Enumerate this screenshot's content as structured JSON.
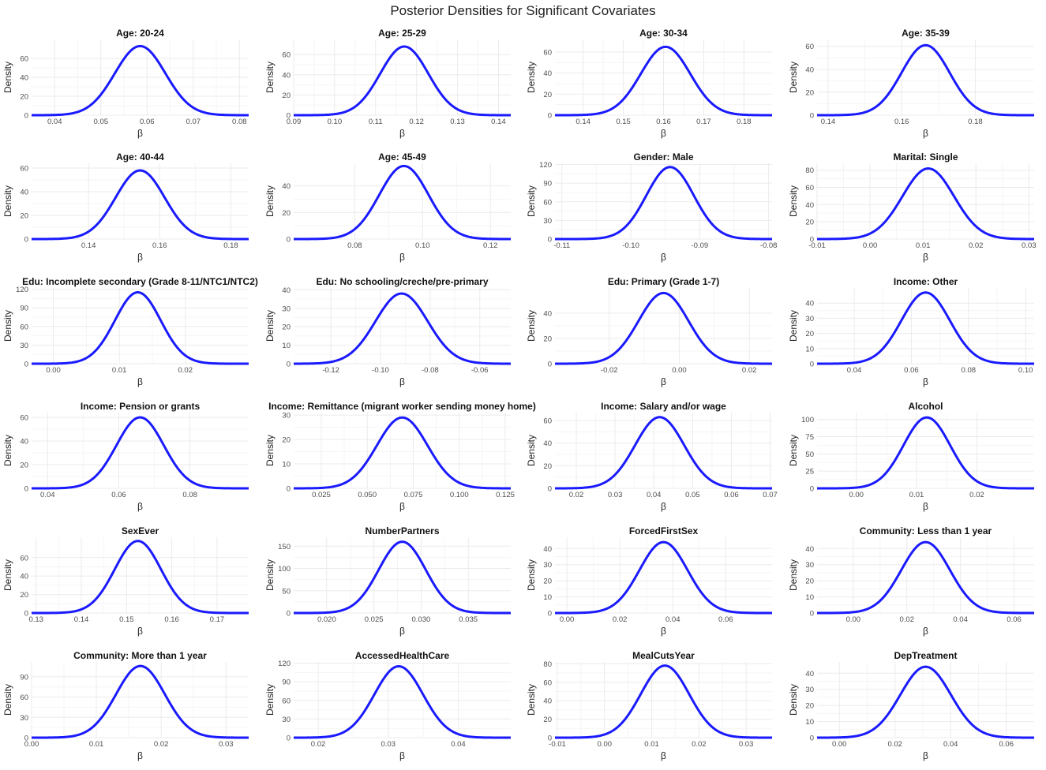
{
  "title": "Posterior Densities for Significant Covariates",
  "colors": {
    "curve": "#1a1aff",
    "grid_major": "#ebebeb",
    "grid_minor": "#f5f5f5"
  },
  "chart_data": [
    {
      "type": "line",
      "title": "Age: 20-24",
      "xlabel": "β",
      "ylabel": "Density",
      "mean": 0.0585,
      "peak": 73,
      "xlim": [
        0.035,
        0.082
      ],
      "ylim": [
        0,
        80
      ],
      "xticks": [
        0.04,
        0.05,
        0.06,
        0.07,
        0.08
      ],
      "xtick_labels": [
        "0.04",
        "0.05",
        "0.06",
        "0.07",
        "0.08"
      ],
      "yticks": [
        0,
        20,
        40,
        60
      ],
      "grid": true
    },
    {
      "type": "line",
      "title": "Age: 25-29",
      "xlabel": "β",
      "ylabel": "Density",
      "mean": 0.117,
      "peak": 68,
      "xlim": [
        0.09,
        0.143
      ],
      "ylim": [
        0,
        75
      ],
      "xticks": [
        0.09,
        0.1,
        0.11,
        0.12,
        0.13,
        0.14
      ],
      "xtick_labels": [
        "0.09",
        "0.10",
        "0.11",
        "0.12",
        "0.13",
        "0.14"
      ],
      "yticks": [
        0,
        20,
        40,
        60
      ],
      "grid": true
    },
    {
      "type": "line",
      "title": "Age: 30-34",
      "xlabel": "β",
      "ylabel": "Density",
      "mean": 0.1605,
      "peak": 65,
      "xlim": [
        0.133,
        0.187
      ],
      "ylim": [
        0,
        72
      ],
      "xticks": [
        0.14,
        0.15,
        0.16,
        0.17,
        0.18
      ],
      "xtick_labels": [
        "0.14",
        "0.15",
        "0.16",
        "0.17",
        "0.18"
      ],
      "yticks": [
        0,
        20,
        40,
        60
      ],
      "grid": true
    },
    {
      "type": "line",
      "title": "Age: 35-39",
      "xlabel": "β",
      "ylabel": "Density",
      "mean": 0.1665,
      "peak": 61,
      "xlim": [
        0.137,
        0.196
      ],
      "ylim": [
        0,
        66
      ],
      "xticks": [
        0.14,
        0.16,
        0.18
      ],
      "xtick_labels": [
        "0.14",
        "0.16",
        "0.18"
      ],
      "yticks": [
        0,
        20,
        40,
        60
      ],
      "grid": true
    },
    {
      "type": "line",
      "title": "Age: 40-44",
      "xlabel": "β",
      "ylabel": "Density",
      "mean": 0.1545,
      "peak": 58,
      "xlim": [
        0.124,
        0.185
      ],
      "ylim": [
        0,
        64
      ],
      "xticks": [
        0.14,
        0.16,
        0.18
      ],
      "xtick_labels": [
        "0.14",
        "0.16",
        "0.18"
      ],
      "yticks": [
        0,
        20,
        40,
        60
      ],
      "grid": true
    },
    {
      "type": "line",
      "title": "Age: 45-49",
      "xlabel": "β",
      "ylabel": "Density",
      "mean": 0.0945,
      "peak": 55,
      "xlim": [
        0.062,
        0.126
      ],
      "ylim": [
        0,
        57
      ],
      "xticks": [
        0.08,
        0.1,
        0.12
      ],
      "xtick_labels": [
        "0.08",
        "0.10",
        "0.12"
      ],
      "yticks": [
        0,
        20,
        40
      ],
      "grid": true
    },
    {
      "type": "line",
      "title": "Gender: Male",
      "xlabel": "β",
      "ylabel": "Density",
      "mean": -0.0943,
      "peak": 116,
      "xlim": [
        -0.111,
        -0.0795
      ],
      "ylim": [
        0,
        122
      ],
      "xticks": [
        -0.11,
        -0.1,
        -0.09,
        -0.08
      ],
      "xtick_labels": [
        "-0.11",
        "-0.10",
        "-0.09",
        "-0.08"
      ],
      "yticks": [
        0,
        30,
        60,
        90,
        120
      ],
      "grid": true
    },
    {
      "type": "line",
      "title": "Marital: Single",
      "xlabel": "β",
      "ylabel": "Density",
      "mean": 0.011,
      "peak": 82,
      "xlim": [
        -0.01,
        0.031
      ],
      "ylim": [
        0,
        88
      ],
      "xticks": [
        -0.01,
        0,
        0.01,
        0.02,
        0.03
      ],
      "xtick_labels": [
        "-0.01",
        "0.00",
        "0.01",
        "0.02",
        "0.03"
      ],
      "yticks": [
        0,
        20,
        40,
        60,
        80
      ],
      "grid": true
    },
    {
      "type": "line",
      "title": "Edu: Incomplete secondary (Grade 8-11/NTC1/NTC2)",
      "xlabel": "β",
      "ylabel": "Density",
      "mean": 0.0128,
      "peak": 115,
      "xlim": [
        -0.0033,
        0.0296
      ],
      "ylim": [
        0,
        122
      ],
      "xticks": [
        0,
        0.01,
        0.02
      ],
      "xtick_labels": [
        "0.00",
        "0.01",
        "0.02"
      ],
      "yticks": [
        0,
        30,
        60,
        90,
        120
      ],
      "grid": true
    },
    {
      "type": "line",
      "title": "Edu: No schooling/creche/pre-primary",
      "xlabel": "β",
      "ylabel": "Density",
      "mean": -0.0915,
      "peak": 38,
      "xlim": [
        -0.135,
        -0.0475
      ],
      "ylim": [
        0,
        41
      ],
      "xticks": [
        -0.12,
        -0.1,
        -0.08,
        -0.06
      ],
      "xtick_labels": [
        "-0.12",
        "-0.10",
        "-0.08",
        "-0.06"
      ],
      "yticks": [
        0,
        10,
        20,
        30,
        40
      ],
      "grid": true
    },
    {
      "type": "line",
      "title": "Edu: Primary (Grade 1-7)",
      "xlabel": "β",
      "ylabel": "Density",
      "mean": -0.0045,
      "peak": 56,
      "xlim": [
        -0.0355,
        0.0265
      ],
      "ylim": [
        0,
        60
      ],
      "xticks": [
        -0.02,
        0,
        0.02
      ],
      "xtick_labels": [
        "-0.02",
        "0.00",
        "0.02"
      ],
      "yticks": [
        0,
        20,
        40
      ],
      "grid": true
    },
    {
      "type": "line",
      "title": "Income: Other",
      "xlabel": "β",
      "ylabel": "Density",
      "mean": 0.065,
      "peak": 47,
      "xlim": [
        0.027,
        0.103
      ],
      "ylim": [
        0,
        50
      ],
      "xticks": [
        0.04,
        0.06,
        0.08,
        0.1
      ],
      "xtick_labels": [
        "0.04",
        "0.06",
        "0.08",
        "0.10"
      ],
      "yticks": [
        0,
        10,
        20,
        30,
        40
      ],
      "grid": true
    },
    {
      "type": "line",
      "title": "Income: Pension or grants",
      "xlabel": "β",
      "ylabel": "Density",
      "mean": 0.066,
      "peak": 60,
      "xlim": [
        0.0355,
        0.0965
      ],
      "ylim": [
        0,
        64
      ],
      "xticks": [
        0.04,
        0.06,
        0.08
      ],
      "xtick_labels": [
        "0.04",
        "0.06",
        "0.08"
      ],
      "yticks": [
        0,
        20,
        40,
        60
      ],
      "grid": true
    },
    {
      "type": "line",
      "title": "Income: Remittance (migrant worker sending money home)",
      "xlabel": "β",
      "ylabel": "Density",
      "mean": 0.069,
      "peak": 29,
      "xlim": [
        0.01,
        0.128
      ],
      "ylim": [
        0,
        31
      ],
      "xticks": [
        0.025,
        0.05,
        0.075,
        0.1,
        0.125
      ],
      "xtick_labels": [
        "0.025",
        "0.050",
        "0.075",
        "0.100",
        "0.125"
      ],
      "yticks": [
        0,
        10,
        20,
        30
      ],
      "grid": true
    },
    {
      "type": "line",
      "title": "Income: Salary and/or wage",
      "xlabel": "β",
      "ylabel": "Density",
      "mean": 0.0415,
      "peak": 63,
      "xlim": [
        0.0145,
        0.0705
      ],
      "ylim": [
        0,
        67
      ],
      "xticks": [
        0.02,
        0.03,
        0.04,
        0.05,
        0.06,
        0.07
      ],
      "xtick_labels": [
        "0.02",
        "0.03",
        "0.04",
        "0.05",
        "0.06",
        "0.07"
      ],
      "yticks": [
        0,
        20,
        40,
        60
      ],
      "grid": true
    },
    {
      "type": "line",
      "title": "Alcohol",
      "xlabel": "β",
      "ylabel": "Density",
      "mean": 0.0117,
      "peak": 103,
      "xlim": [
        -0.0065,
        0.0295
      ],
      "ylim": [
        0,
        110
      ],
      "xticks": [
        0,
        0.01,
        0.02
      ],
      "xtick_labels": [
        "0.00",
        "0.01",
        "0.02"
      ],
      "yticks": [
        0,
        25,
        50,
        75,
        100
      ],
      "grid": true
    },
    {
      "type": "line",
      "title": "SexEver",
      "xlabel": "β",
      "ylabel": "Density",
      "mean": 0.1525,
      "peak": 78,
      "xlim": [
        0.129,
        0.177
      ],
      "ylim": [
        0,
        82
      ],
      "xticks": [
        0.13,
        0.14,
        0.15,
        0.16,
        0.17
      ],
      "xtick_labels": [
        "0.13",
        "0.14",
        "0.15",
        "0.16",
        "0.17"
      ],
      "yticks": [
        0,
        20,
        40,
        60
      ],
      "grid": true
    },
    {
      "type": "line",
      "title": "NumberPartners",
      "xlabel": "β",
      "ylabel": "Density",
      "mean": 0.028,
      "peak": 160,
      "xlim": [
        0.0165,
        0.0395
      ],
      "ylim": [
        0,
        170
      ],
      "xticks": [
        0.02,
        0.025,
        0.03,
        0.035
      ],
      "xtick_labels": [
        "0.020",
        "0.025",
        "0.030",
        "0.035"
      ],
      "yticks": [
        0,
        50,
        100,
        150
      ],
      "grid": true
    },
    {
      "type": "line",
      "title": "ForcedFirstSex",
      "xlabel": "β",
      "ylabel": "Density",
      "mean": 0.0365,
      "peak": 44,
      "xlim": [
        -0.0045,
        0.0775
      ],
      "ylim": [
        0,
        47
      ],
      "xticks": [
        0,
        0.02,
        0.04,
        0.06
      ],
      "xtick_labels": [
        "0.00",
        "0.02",
        "0.04",
        "0.06"
      ],
      "yticks": [
        0,
        10,
        20,
        30,
        40
      ],
      "grid": true
    },
    {
      "type": "line",
      "title": "Community: Less than 1 year",
      "xlabel": "β",
      "ylabel": "Density",
      "mean": 0.027,
      "peak": 44,
      "xlim": [
        -0.0135,
        0.0675
      ],
      "ylim": [
        0,
        47
      ],
      "xticks": [
        0,
        0.02,
        0.04,
        0.06
      ],
      "xtick_labels": [
        "0.00",
        "0.02",
        "0.04",
        "0.06"
      ],
      "yticks": [
        0,
        10,
        20,
        30,
        40
      ],
      "grid": true
    },
    {
      "type": "line",
      "title": "Community: More than 1 year",
      "xlabel": "β",
      "ylabel": "Density",
      "mean": 0.0168,
      "peak": 106,
      "xlim": [
        0,
        0.0335
      ],
      "ylim": [
        0,
        112
      ],
      "xticks": [
        0,
        0.01,
        0.02,
        0.03
      ],
      "xtick_labels": [
        "0.00",
        "0.01",
        "0.02",
        "0.03"
      ],
      "yticks": [
        0,
        30,
        60,
        90
      ],
      "grid": true
    },
    {
      "type": "line",
      "title": "AccessedHealthCare",
      "xlabel": "β",
      "ylabel": "Density",
      "mean": 0.0315,
      "peak": 115,
      "xlim": [
        0.0165,
        0.0475
      ],
      "ylim": [
        0,
        122
      ],
      "xticks": [
        0.02,
        0.03,
        0.04
      ],
      "xtick_labels": [
        "0.02",
        "0.03",
        "0.04"
      ],
      "yticks": [
        0,
        30,
        60,
        90,
        120
      ],
      "grid": true
    },
    {
      "type": "line",
      "title": "MealCutsYear",
      "xlabel": "β",
      "ylabel": "Density",
      "mean": 0.0128,
      "peak": 78,
      "xlim": [
        -0.0105,
        0.0355
      ],
      "ylim": [
        0,
        82
      ],
      "xticks": [
        -0.01,
        0,
        0.01,
        0.02,
        0.03
      ],
      "xtick_labels": [
        "-0.01",
        "0.00",
        "0.01",
        "0.02",
        "0.03"
      ],
      "yticks": [
        0,
        20,
        40,
        60,
        80
      ],
      "grid": true
    },
    {
      "type": "line",
      "title": "DepTreatment",
      "xlabel": "β",
      "ylabel": "Density",
      "mean": 0.031,
      "peak": 44,
      "xlim": [
        -0.008,
        0.07
      ],
      "ylim": [
        0,
        47
      ],
      "xticks": [
        0,
        0.02,
        0.04,
        0.06
      ],
      "xtick_labels": [
        "0.00",
        "0.02",
        "0.04",
        "0.06"
      ],
      "yticks": [
        0,
        10,
        20,
        30,
        40
      ],
      "grid": true
    }
  ]
}
